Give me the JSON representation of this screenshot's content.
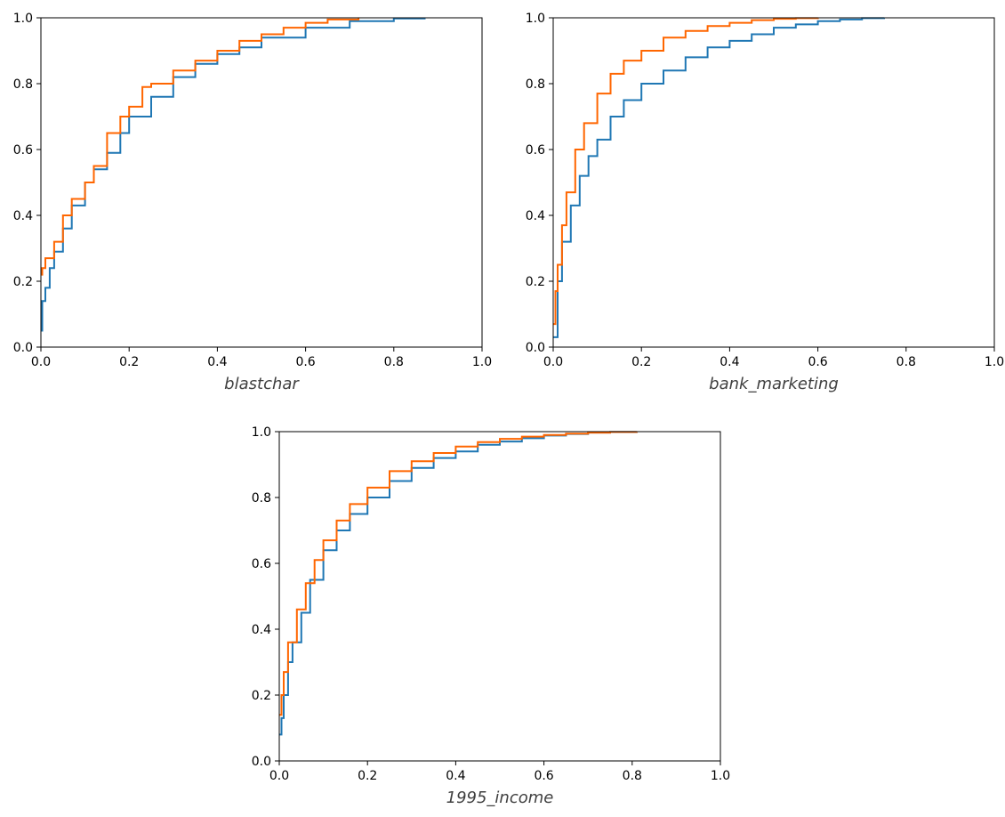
{
  "chart_data": [
    {
      "type": "line",
      "xlabel": "blastchar",
      "xlim": [
        0,
        1
      ],
      "ylim": [
        0,
        1
      ],
      "xticks": [
        "0.0",
        "0.2",
        "0.4",
        "0.6",
        "0.8",
        "1.0"
      ],
      "yticks": [
        "0.0",
        "0.2",
        "0.4",
        "0.6",
        "0.8",
        "1.0"
      ],
      "grid": false,
      "series": [
        {
          "color": "#1f77b4",
          "x": [
            0.0,
            0.003,
            0.01,
            0.02,
            0.03,
            0.05,
            0.07,
            0.1,
            0.12,
            0.15,
            0.18,
            0.2,
            0.25,
            0.3,
            0.35,
            0.4,
            0.45,
            0.5,
            0.6,
            0.7,
            0.8,
            0.87
          ],
          "y": [
            0.05,
            0.14,
            0.18,
            0.24,
            0.29,
            0.36,
            0.43,
            0.5,
            0.54,
            0.59,
            0.65,
            0.7,
            0.76,
            0.82,
            0.86,
            0.89,
            0.91,
            0.94,
            0.97,
            0.99,
            0.998,
            1.0
          ]
        },
        {
          "color": "#ff6600",
          "x": [
            0.0,
            0.003,
            0.01,
            0.03,
            0.05,
            0.07,
            0.1,
            0.12,
            0.15,
            0.18,
            0.2,
            0.23,
            0.25,
            0.3,
            0.35,
            0.4,
            0.45,
            0.5,
            0.55,
            0.6,
            0.65,
            0.72
          ],
          "y": [
            0.22,
            0.24,
            0.27,
            0.32,
            0.4,
            0.45,
            0.5,
            0.55,
            0.65,
            0.7,
            0.73,
            0.79,
            0.8,
            0.84,
            0.87,
            0.9,
            0.93,
            0.95,
            0.97,
            0.985,
            0.995,
            1.0
          ]
        }
      ]
    },
    {
      "type": "line",
      "xlabel": "bank_marketing",
      "xlim": [
        0,
        1
      ],
      "ylim": [
        0,
        1
      ],
      "xticks": [
        "0.0",
        "0.2",
        "0.4",
        "0.6",
        "0.8",
        "1.0"
      ],
      "yticks": [
        "0.0",
        "0.2",
        "0.4",
        "0.6",
        "0.8",
        "1.0"
      ],
      "grid": false,
      "series": [
        {
          "color": "#1f77b4",
          "x": [
            0.0,
            0.01,
            0.02,
            0.04,
            0.06,
            0.08,
            0.1,
            0.13,
            0.16,
            0.2,
            0.25,
            0.3,
            0.35,
            0.4,
            0.45,
            0.5,
            0.55,
            0.6,
            0.65,
            0.7,
            0.75
          ],
          "y": [
            0.03,
            0.2,
            0.32,
            0.43,
            0.52,
            0.58,
            0.63,
            0.7,
            0.75,
            0.8,
            0.84,
            0.88,
            0.91,
            0.93,
            0.95,
            0.97,
            0.98,
            0.99,
            0.995,
            0.999,
            1.0
          ]
        },
        {
          "color": "#ff6600",
          "x": [
            0.0,
            0.005,
            0.01,
            0.02,
            0.03,
            0.05,
            0.07,
            0.1,
            0.13,
            0.16,
            0.2,
            0.25,
            0.3,
            0.35,
            0.4,
            0.45,
            0.5,
            0.55,
            0.6
          ],
          "y": [
            0.07,
            0.17,
            0.25,
            0.37,
            0.47,
            0.6,
            0.68,
            0.77,
            0.83,
            0.87,
            0.9,
            0.94,
            0.96,
            0.975,
            0.985,
            0.993,
            0.997,
            0.999,
            1.0
          ]
        }
      ]
    },
    {
      "type": "line",
      "xlabel": "1995_income",
      "xlim": [
        0,
        1
      ],
      "ylim": [
        0,
        1
      ],
      "xticks": [
        "0.0",
        "0.2",
        "0.4",
        "0.6",
        "0.8",
        "1.0"
      ],
      "yticks": [
        "0.0",
        "0.2",
        "0.4",
        "0.6",
        "0.8",
        "1.0"
      ],
      "grid": false,
      "series": [
        {
          "color": "#1f77b4",
          "x": [
            0.0,
            0.005,
            0.01,
            0.02,
            0.03,
            0.05,
            0.07,
            0.1,
            0.13,
            0.16,
            0.2,
            0.25,
            0.3,
            0.35,
            0.4,
            0.45,
            0.5,
            0.55,
            0.6,
            0.65,
            0.7,
            0.75,
            0.81
          ],
          "y": [
            0.08,
            0.13,
            0.2,
            0.3,
            0.36,
            0.45,
            0.55,
            0.64,
            0.7,
            0.75,
            0.8,
            0.85,
            0.89,
            0.92,
            0.94,
            0.96,
            0.97,
            0.98,
            0.988,
            0.993,
            0.997,
            0.999,
            1.0
          ]
        },
        {
          "color": "#ff6600",
          "x": [
            0.0,
            0.005,
            0.01,
            0.02,
            0.04,
            0.06,
            0.08,
            0.1,
            0.13,
            0.16,
            0.2,
            0.25,
            0.3,
            0.35,
            0.4,
            0.45,
            0.5,
            0.55,
            0.6,
            0.65,
            0.7,
            0.75,
            0.81
          ],
          "y": [
            0.14,
            0.2,
            0.27,
            0.36,
            0.46,
            0.54,
            0.61,
            0.67,
            0.73,
            0.78,
            0.83,
            0.88,
            0.91,
            0.935,
            0.955,
            0.968,
            0.978,
            0.985,
            0.99,
            0.994,
            0.997,
            0.999,
            1.0
          ]
        }
      ]
    }
  ]
}
